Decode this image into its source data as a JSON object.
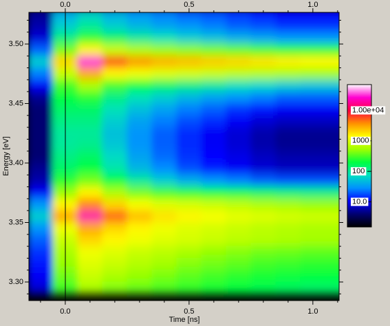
{
  "chart_data": {
    "type": "heatmap",
    "xlabel": "Time [ns]",
    "ylabel": "Energy [eV]",
    "xlim": [
      -0.147,
      1.106
    ],
    "ylim": [
      3.2844,
      3.5266
    ],
    "xticks": [
      {
        "value": 0,
        "label": "0.0"
      },
      {
        "value": 0.5,
        "label": "0.5"
      },
      {
        "value": 1,
        "label": "1.0"
      }
    ],
    "xminorticks": [
      -0.1,
      0.1,
      0.2,
      0.3,
      0.4,
      0.6,
      0.7,
      0.8,
      0.9,
      1.1
    ],
    "yticks": [
      {
        "value": 3.3,
        "label": "3.30"
      },
      3.35,
      {
        "value": 3.4,
        "label": "3.40"
      },
      3.45,
      {
        "value": 3.5,
        "label": "3.50"
      }
    ],
    "yminorticks": [
      3.29,
      3.31,
      3.32,
      3.33,
      3.34,
      3.36,
      3.37,
      3.38,
      3.39,
      3.41,
      3.42,
      3.43,
      3.44,
      3.46,
      3.47,
      3.48,
      3.49,
      3.51,
      3.52
    ],
    "x": [
      -0.1,
      0,
      0.1,
      0.2,
      0.3,
      0.4,
      0.5,
      0.6,
      0.7,
      0.8,
      0.9,
      1.0,
      1.1
    ],
    "y": [
      3.525,
      3.515,
      3.505,
      3.495,
      3.485,
      3.475,
      3.465,
      3.455,
      3.445,
      3.435,
      3.425,
      3.415,
      3.405,
      3.395,
      3.385,
      3.375,
      3.365,
      3.355,
      3.345,
      3.335,
      3.325,
      3.315,
      3.305,
      3.295
    ],
    "z": [
      [
        5,
        40,
        60,
        40,
        30,
        25,
        20,
        18,
        15,
        12,
        10,
        10,
        10
      ],
      [
        6,
        60,
        100,
        60,
        45,
        35,
        30,
        25,
        20,
        18,
        15,
        15,
        15
      ],
      [
        8,
        120,
        250,
        150,
        100,
        80,
        60,
        50,
        40,
        35,
        30,
        30,
        30
      ],
      [
        20,
        400,
        1500,
        800,
        600,
        500,
        450,
        400,
        350,
        300,
        250,
        250,
        250
      ],
      [
        60,
        2000,
        30000,
        6000,
        3500,
        2800,
        2500,
        2200,
        2000,
        1800,
        1600,
        1500,
        1500
      ],
      [
        25,
        800,
        3000,
        1500,
        1200,
        1000,
        900,
        800,
        700,
        650,
        600,
        550,
        550
      ],
      [
        10,
        300,
        600,
        300,
        200,
        150,
        120,
        100,
        80,
        70,
        60,
        55,
        55
      ],
      [
        5,
        200,
        250,
        120,
        80,
        60,
        45,
        35,
        30,
        25,
        20,
        20,
        20
      ],
      [
        4,
        150,
        150,
        80,
        50,
        35,
        25,
        20,
        15,
        12,
        10,
        10,
        10
      ],
      [
        4,
        120,
        120,
        60,
        35,
        25,
        18,
        14,
        10,
        8,
        7,
        7,
        7
      ],
      [
        4,
        100,
        100,
        50,
        30,
        20,
        14,
        10,
        8,
        6,
        5,
        5,
        5
      ],
      [
        4,
        100,
        110,
        55,
        30,
        20,
        14,
        10,
        8,
        6,
        5,
        5,
        5
      ],
      [
        4,
        120,
        150,
        70,
        35,
        22,
        15,
        11,
        9,
        7,
        6,
        6,
        6
      ],
      [
        5,
        150,
        200,
        90,
        45,
        28,
        18,
        13,
        10,
        8,
        7,
        7,
        7
      ],
      [
        6,
        250,
        400,
        200,
        100,
        60,
        40,
        30,
        25,
        20,
        18,
        18,
        18
      ],
      [
        10,
        500,
        1500,
        600,
        400,
        300,
        250,
        200,
        180,
        150,
        130,
        120,
        120
      ],
      [
        30,
        1500,
        4000,
        2000,
        1300,
        1000,
        900,
        800,
        700,
        600,
        550,
        500,
        500
      ],
      [
        60,
        3000,
        20000,
        5000,
        2500,
        1800,
        1500,
        1300,
        1100,
        1000,
        900,
        850,
        850
      ],
      [
        30,
        1200,
        3000,
        2000,
        1500,
        1200,
        1000,
        900,
        800,
        700,
        650,
        600,
        600
      ],
      [
        20,
        800,
        2000,
        1500,
        1200,
        1000,
        900,
        800,
        700,
        650,
        600,
        550,
        550
      ],
      [
        15,
        600,
        1200,
        1000,
        800,
        700,
        600,
        500,
        450,
        400,
        380,
        350,
        350
      ],
      [
        12,
        500,
        1000,
        800,
        650,
        550,
        450,
        400,
        350,
        300,
        280,
        260,
        260
      ],
      [
        10,
        400,
        800,
        600,
        500,
        420,
        350,
        300,
        260,
        230,
        210,
        200,
        200
      ],
      [
        8,
        300,
        600,
        450,
        380,
        320,
        270,
        230,
        200,
        180,
        160,
        150,
        150
      ]
    ],
    "colorscale": "log",
    "clim": [
      1.5,
      70000
    ],
    "colormap": [
      "#000000",
      "#000070",
      "#0000ff",
      "#0090ff",
      "#00e0c0",
      "#00ff40",
      "#a0ff00",
      "#ffff00",
      "#ff9000",
      "#ff0040",
      "#ff00d0",
      "#ffffff"
    ],
    "cticks": [
      {
        "value": 10,
        "label": "10.0"
      },
      100,
      1000,
      {
        "value": 10000,
        "label": "1.00e+04"
      }
    ]
  }
}
